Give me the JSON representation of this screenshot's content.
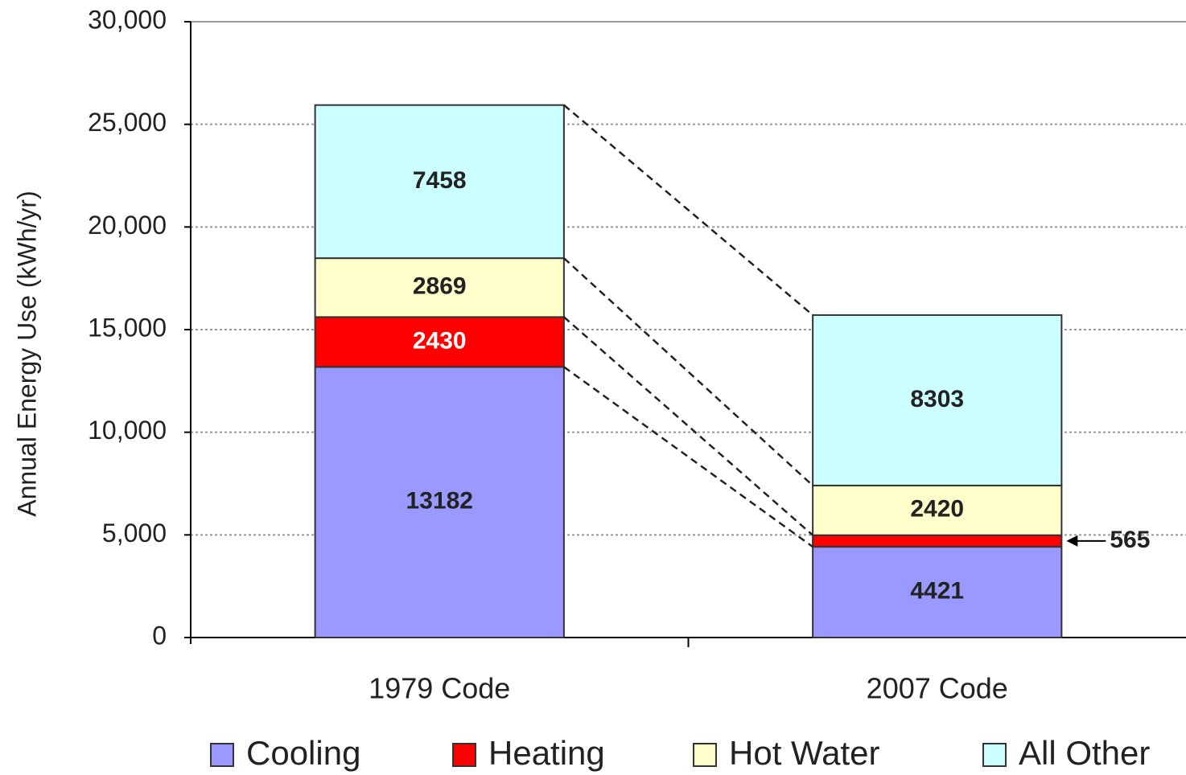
{
  "chart_data": {
    "type": "stacked_bar",
    "y_axis_label": "Annual Energy Use (kWh/yr)",
    "categories": [
      "1979 Code",
      "2007 Code"
    ],
    "series": [
      {
        "name": "Cooling",
        "color": "#9999ff",
        "values": [
          13182,
          4421
        ]
      },
      {
        "name": "Heating",
        "color": "#ff0000",
        "values": [
          2430,
          565
        ]
      },
      {
        "name": "Hot Water",
        "color": "#ffffcc",
        "values": [
          2869,
          2420
        ]
      },
      {
        "name": "All Other",
        "color": "#ccffff",
        "values": [
          7458,
          8303
        ]
      }
    ],
    "ylim": [
      0,
      30000
    ],
    "yticks": [
      0,
      {
        "value": 5000,
        "label": "5,000"
      },
      {
        "value": 10000,
        "label": "10,000"
      },
      {
        "value": 15000,
        "label": "15,000"
      },
      {
        "value": 20000,
        "label": "20,000"
      },
      {
        "value": 25000,
        "label": "25,000"
      },
      {
        "value": 30000,
        "label": "30,000"
      }
    ],
    "grid": true
  }
}
